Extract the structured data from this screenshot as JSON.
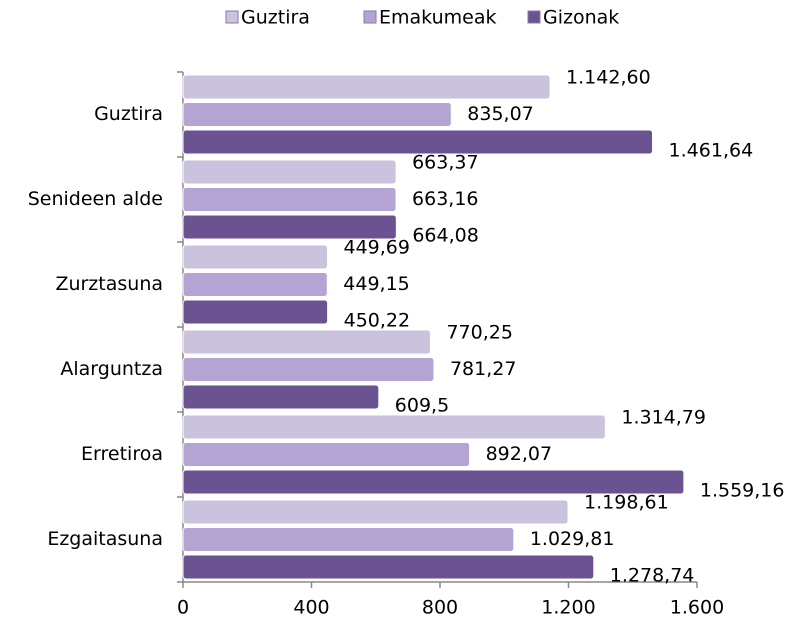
{
  "chart_data": {
    "type": "bar",
    "orientation": "horizontal",
    "categories": [
      "Guztira",
      "Senideen alde",
      "Zurztasuna",
      "Alarguntza",
      "Erretiroa",
      "Ezgaitasuna"
    ],
    "series": [
      {
        "name": "Guztira",
        "color": "#cbc2dd",
        "values": [
          1142.6,
          663.37,
          449.69,
          770.25,
          1314.79,
          1198.61
        ],
        "value_labels": [
          "1.142,60",
          "663,37",
          "449,69",
          "770,25",
          "1.314,79",
          "1.198,61"
        ]
      },
      {
        "name": "Emakumeak",
        "color": "#b4a4d4",
        "values": [
          835.07,
          663.16,
          449.15,
          781.27,
          892.07,
          1029.81
        ],
        "value_labels": [
          "835,07",
          "663,16",
          "449,15",
          "781,27",
          "892,07",
          "1.029,81"
        ]
      },
      {
        "name": "Gizonak",
        "color": "#6b5290",
        "values": [
          1461.64,
          664.08,
          450.22,
          609.5,
          1559.16,
          1278.74
        ],
        "value_labels": [
          "1.461,64",
          "664,08",
          "450,22",
          "609,5",
          "1.559,16",
          "1.278,74"
        ]
      }
    ],
    "xlim": [
      0,
      1600
    ],
    "xticks": [
      0,
      400,
      800,
      {
        "value": 1200,
        "label": "1.200"
      },
      {
        "value": 1600,
        "label": "1.600"
      }
    ],
    "legend": "top"
  }
}
